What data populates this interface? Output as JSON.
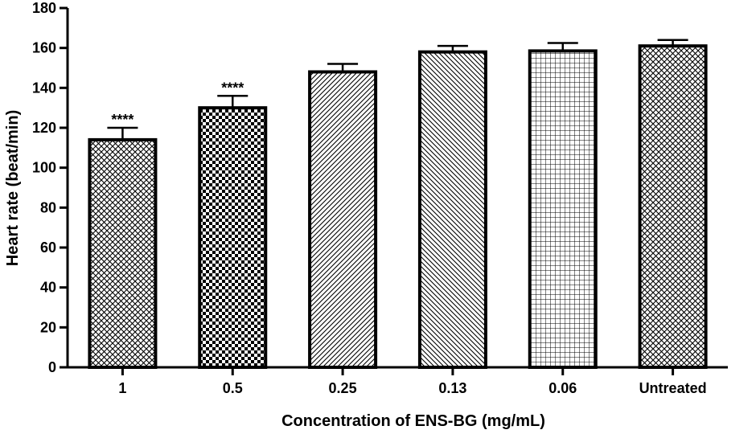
{
  "chart_data": {
    "type": "bar",
    "categories": [
      "1",
      "0.5",
      "0.25",
      "0.13",
      "0.06",
      "Untreated"
    ],
    "values": [
      114,
      130,
      148,
      158,
      158.5,
      161
    ],
    "errors": [
      6,
      6,
      4,
      3,
      4,
      3
    ],
    "annotations": [
      "****",
      "****",
      "",
      "",
      "",
      ""
    ],
    "patterns": [
      "crosshatch-diamond",
      "checker",
      "diag-forward",
      "diag-back",
      "grid",
      "crosshatch-diamond"
    ],
    "title": "",
    "xlabel": "Concentration of ENS-BG (mg/mL)",
    "ylabel": "Heart rate (beat/min)",
    "ylim": [
      0,
      180
    ],
    "yticks": [
      0,
      20,
      40,
      60,
      80,
      100,
      120,
      140,
      160,
      180
    ],
    "grid": false,
    "colors": {
      "bar_stroke": "#000000",
      "fill": "#ffffff"
    }
  }
}
